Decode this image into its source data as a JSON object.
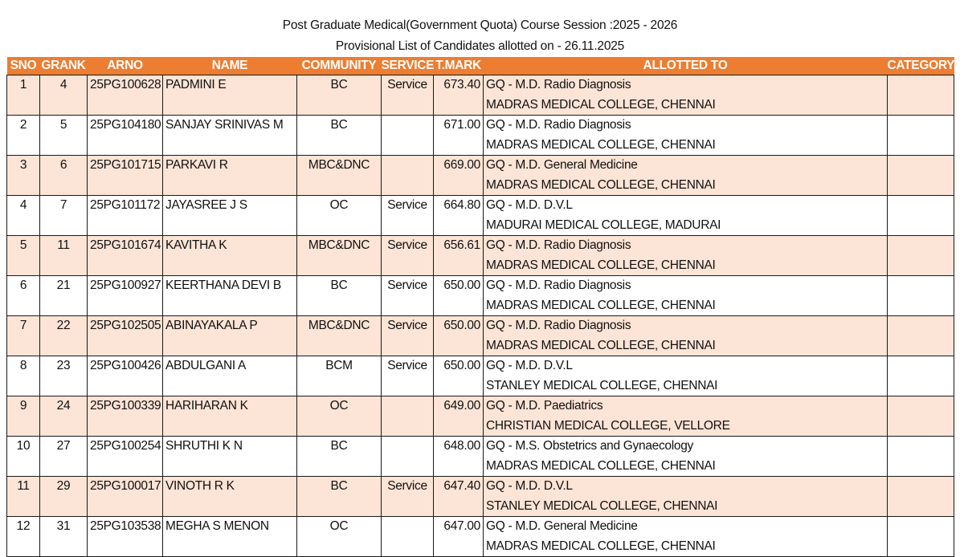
{
  "document": {
    "title_line1": "Post Graduate Medical(Government Quota) Course Session :2025 - 2026",
    "title_line2": "Provisional List of Candidates allotted on - 26.11.2025",
    "header_color": "#ed7d31",
    "alt_row_color": "#fce4d6"
  },
  "table": {
    "columns": [
      "SNO",
      "GRANK",
      "ARNO",
      "NAME",
      "COMMUNITY",
      "SERVICE",
      "T.MARK",
      "ALLOTTED TO",
      "CATEGORY"
    ],
    "rows": [
      {
        "sno": "1",
        "grank": "4",
        "arno": "25PG100628",
        "name": "PADMINI E",
        "community": "BC",
        "service": "Service",
        "tmark": "673.40",
        "course": "GQ - M.D. Radio Diagnosis",
        "college": "MADRAS MEDICAL COLLEGE, CHENNAI",
        "category": ""
      },
      {
        "sno": "2",
        "grank": "5",
        "arno": "25PG104180",
        "name": "SANJAY SRINIVAS M",
        "community": "BC",
        "service": "",
        "tmark": "671.00",
        "course": "GQ - M.D. Radio Diagnosis",
        "college": "MADRAS MEDICAL COLLEGE, CHENNAI",
        "category": ""
      },
      {
        "sno": "3",
        "grank": "6",
        "arno": "25PG101715",
        "name": "PARKAVI R",
        "community": "MBC&DNC",
        "service": "",
        "tmark": "669.00",
        "course": "GQ - M.D. General Medicine",
        "college": "MADRAS MEDICAL COLLEGE, CHENNAI",
        "category": ""
      },
      {
        "sno": "4",
        "grank": "7",
        "arno": "25PG101172",
        "name": "JAYASREE J S",
        "community": "OC",
        "service": "Service",
        "tmark": "664.80",
        "course": "GQ - M.D. D.V.L",
        "college": "MADURAI MEDICAL COLLEGE, MADURAI",
        "category": ""
      },
      {
        "sno": "5",
        "grank": "11",
        "arno": "25PG101674",
        "name": "KAVITHA K",
        "community": "MBC&DNC",
        "service": "Service",
        "tmark": "656.61",
        "course": "GQ - M.D. Radio Diagnosis",
        "college": "MADRAS MEDICAL COLLEGE, CHENNAI",
        "category": ""
      },
      {
        "sno": "6",
        "grank": "21",
        "arno": "25PG100927",
        "name": "KEERTHANA DEVI B",
        "community": "BC",
        "service": "Service",
        "tmark": "650.00",
        "course": "GQ - M.D. Radio Diagnosis",
        "college": "MADRAS MEDICAL COLLEGE, CHENNAI",
        "category": ""
      },
      {
        "sno": "7",
        "grank": "22",
        "arno": "25PG102505",
        "name": "ABINAYAKALA P",
        "community": "MBC&DNC",
        "service": "Service",
        "tmark": "650.00",
        "course": "GQ - M.D. Radio Diagnosis",
        "college": "MADRAS MEDICAL COLLEGE, CHENNAI",
        "category": ""
      },
      {
        "sno": "8",
        "grank": "23",
        "arno": "25PG100426",
        "name": "ABDULGANI A",
        "community": "BCM",
        "service": "Service",
        "tmark": "650.00",
        "course": "GQ - M.D. D.V.L",
        "college": "STANLEY MEDICAL COLLEGE, CHENNAI",
        "category": ""
      },
      {
        "sno": "9",
        "grank": "24",
        "arno": "25PG100339",
        "name": "HARIHARAN K",
        "community": "OC",
        "service": "",
        "tmark": "649.00",
        "course": "GQ - M.D. Paediatrics",
        "college": "CHRISTIAN MEDICAL COLLEGE, VELLORE",
        "category": ""
      },
      {
        "sno": "10",
        "grank": "27",
        "arno": "25PG100254",
        "name": "SHRUTHI K N",
        "community": "BC",
        "service": "",
        "tmark": "648.00",
        "course": "GQ - M.S. Obstetrics and Gynaecology",
        "college": "MADRAS MEDICAL COLLEGE, CHENNAI",
        "category": ""
      },
      {
        "sno": "11",
        "grank": "29",
        "arno": "25PG100017",
        "name": "VINOTH R K",
        "community": "BC",
        "service": "Service",
        "tmark": "647.40",
        "course": "GQ - M.D. D.V.L",
        "college": "STANLEY MEDICAL COLLEGE, CHENNAI",
        "category": ""
      },
      {
        "sno": "12",
        "grank": "31",
        "arno": "25PG103538",
        "name": "MEGHA S MENON",
        "community": "OC",
        "service": "",
        "tmark": "647.00",
        "course": "GQ - M.D. General Medicine",
        "college": "MADRAS MEDICAL COLLEGE, CHENNAI",
        "category": ""
      }
    ]
  }
}
